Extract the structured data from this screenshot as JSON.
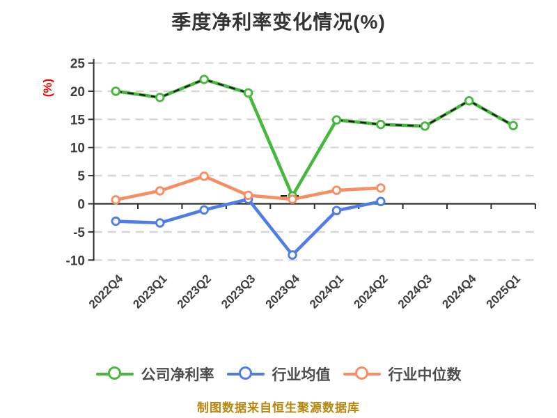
{
  "title": "季度净利率变化情况(%)",
  "caption": "制图数据来自恒生聚源数据库",
  "colors": {
    "background": "#ffffff",
    "grid": "#d6d6d6",
    "axis": "#2d2d2d",
    "tick_text": "#3d3d3d",
    "title_text": "#333333",
    "legend_text": "#4c4c4c",
    "unit_label": "#ff0000",
    "caption_text": "#b8860b",
    "dash_overlay": "#1a1a1a"
  },
  "legend": {
    "items": [
      {
        "label": "公司净利率",
        "color": "#47b83e"
      },
      {
        "label": "行业均值",
        "color": "#4d7de5"
      },
      {
        "label": "行业中位数",
        "color": "#f78e63"
      }
    ]
  },
  "chart_data": {
    "type": "line",
    "title": "季度净利率变化情况(%)",
    "xlabel": "",
    "ylabel": "(%)",
    "ylim": [
      -10,
      25
    ],
    "yticks": [
      25,
      20,
      15,
      10,
      5,
      0,
      -5,
      -10
    ],
    "grid": "horizontal-dashed",
    "legend_position": "bottom",
    "categories": [
      "2022Q4",
      "2023Q1",
      "2023Q2",
      "2023Q3",
      "2023Q4",
      "2024Q1",
      "2024Q2",
      "2024Q3",
      "2024Q4",
      "2025Q1"
    ],
    "series": [
      {
        "name": "公司净利率",
        "color": "#47b83e",
        "values": [
          20.0,
          18.9,
          22.1,
          19.7,
          1.4,
          14.9,
          14.1,
          13.8,
          18.3,
          13.9
        ],
        "overlay_dash": {
          "ranges": [
            [
              0,
              3
            ],
            [
              5,
              9
            ]
          ],
          "points": [
            4
          ]
        }
      },
      {
        "name": "行业均值",
        "color": "#4d7de5",
        "values": [
          -3.1,
          -3.4,
          -1.1,
          0.8,
          -9.1,
          -1.2,
          0.4
        ]
      },
      {
        "name": "行业中位数",
        "color": "#f78e63",
        "values": [
          0.7,
          2.3,
          4.9,
          1.5,
          0.8,
          2.4,
          2.8
        ]
      }
    ]
  }
}
